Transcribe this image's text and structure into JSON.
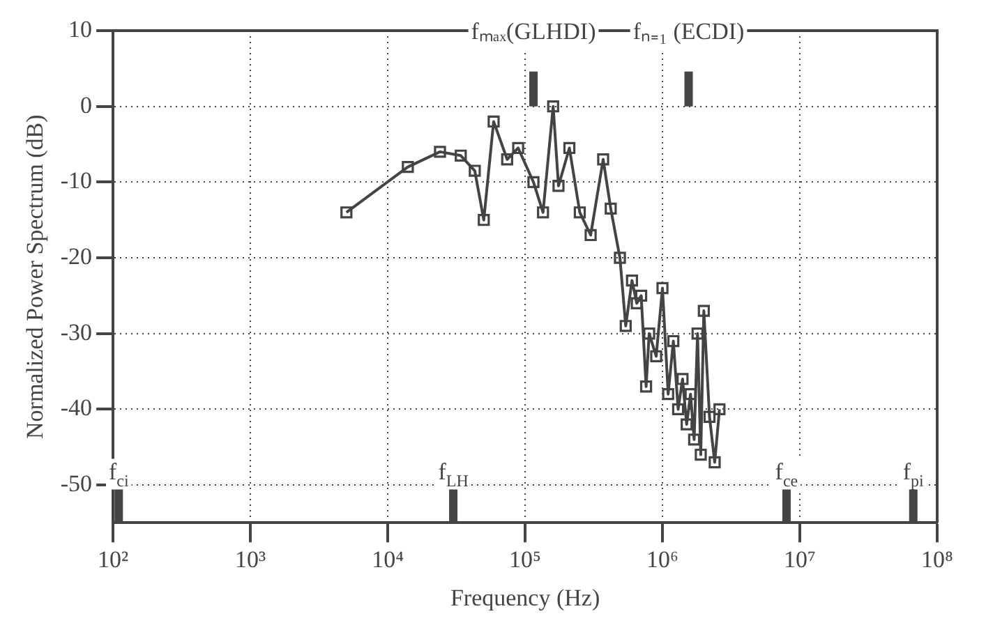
{
  "chart_data": {
    "type": "line",
    "xlabel": "Frequency (Hz)",
    "ylabel": "Normalized Power Spectrum (dB)",
    "log": "x",
    "x": [
      5000,
      14000,
      24000,
      34000,
      43000,
      50000,
      59000,
      74000,
      89000,
      115000,
      135000,
      160000,
      175000,
      210000,
      250000,
      300000,
      370000,
      420000,
      490000,
      540000,
      600000,
      650000,
      700000,
      760000,
      800000,
      900000,
      1000000,
      1100000,
      1200000,
      1300000,
      1400000,
      1500000,
      1600000,
      1700000,
      1800000,
      1900000,
      2000000,
      2200000,
      2400000,
      2600000
    ],
    "series": [
      {
        "color": "#444444",
        "values": [
          -14,
          -8,
          -6,
          -6.5,
          -8.5,
          -15,
          -2,
          -7,
          -5.5,
          -10,
          -14,
          0,
          -10.5,
          -5.5,
          -14,
          -17,
          -7,
          -13.5,
          -20,
          -29,
          -23,
          -26,
          -25,
          -37,
          -30,
          -33,
          -24,
          -38,
          -31,
          -40,
          -36,
          -42,
          -38,
          -44,
          -30,
          -46,
          -27,
          -41,
          -47,
          -40
        ]
      }
    ],
    "xlim": [
      100,
      100000000
    ],
    "xticks": [
      {
        "value": 100,
        "label": "10²"
      },
      {
        "value": 1000,
        "label": "10³"
      },
      {
        "value": 10000,
        "label": "10⁴"
      },
      {
        "value": 100000,
        "label": "10⁵"
      },
      {
        "value": 1000000,
        "label": "10⁶"
      },
      {
        "value": 10000000,
        "label": "10⁷"
      },
      {
        "value": 100000000,
        "label": "10⁸"
      }
    ],
    "ylim": [
      -55,
      10
    ],
    "yticks": [
      10,
      0,
      -10,
      -20,
      -30,
      -40,
      -50
    ],
    "grid": true,
    "legend": false,
    "marker": "square",
    "line_style": "solid",
    "ref_lines": [
      {
        "axis": "x",
        "value": 115000,
        "label": "fₘₐₓ(GLHDI)"
      },
      {
        "axis": "x",
        "value": 1550000,
        "label": "fₙ₌₁ (ECDI)"
      },
      {
        "axis": "x",
        "value": 110,
        "label": "f$_{ci}$"
      },
      {
        "axis": "x",
        "value": 30000,
        "label": "f$_{LH}$"
      },
      {
        "axis": "x",
        "value": 8000000,
        "label": "f$_{ce}$"
      },
      {
        "axis": "x",
        "value": 67000000,
        "label": "f$_{pi}$"
      }
    ]
  }
}
